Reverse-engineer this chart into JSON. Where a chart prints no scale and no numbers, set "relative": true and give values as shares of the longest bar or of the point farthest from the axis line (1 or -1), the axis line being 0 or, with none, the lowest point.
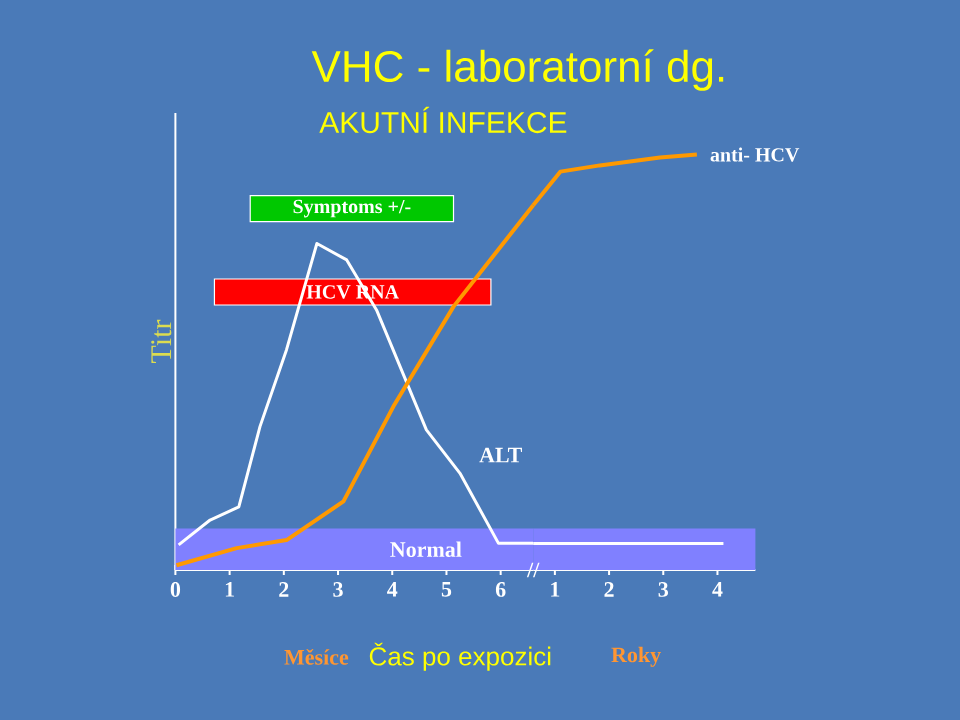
{
  "chart_data": [
    {
      "type": "line",
      "title": "VHC - laboratorní dg.",
      "subtitle": "AKUTNÍ INFEKCE",
      "xlabel": "Čas po expozici",
      "ylabel": "Titr",
      "relative": true,
      "tick_labels": "x",
      "xlim": [
        0,
        6.6
      ],
      "xticks": [
        0,
        1,
        2,
        3,
        4,
        5,
        6
      ],
      "series": [
        {
          "name": "ALT",
          "color": "#ffffff",
          "x": [
            0.06,
            0.64,
            1.17,
            1.56,
            2.05,
            2.61,
            3.16,
            3.71,
            4.63,
            5.25,
            5.96,
            6.6
          ],
          "values": [
            0.069,
            0.137,
            0.173,
            0.393,
            0.604,
            0.895,
            0.85,
            0.713,
            0.384,
            0.265,
            0.073,
            0.073
          ]
        },
        {
          "color": "#ff9900",
          "x": [
            0.02,
            1.13,
            2.05,
            3.1,
            4.02,
            5.13,
            6.6
          ],
          "values": [
            0.013,
            0.06,
            0.082,
            0.188,
            0.448,
            0.722,
            1.0
          ]
        }
      ],
      "bands": [
        {
          "axis": "y",
          "from": 0,
          "to": 0.114,
          "label": "Normal",
          "color": "#8080ff"
        },
        {
          "axis": "x",
          "from": 1.38,
          "to": 5.13,
          "label": "Symptoms +/-",
          "color": "#00c800"
        },
        {
          "axis": "x",
          "from": 0.72,
          "to": 5.82,
          "label": "HCV RNA",
          "color": "#ff0000"
        }
      ],
      "annotations": [
        "Měsíce"
      ]
    },
    {
      "type": "line",
      "relative": true,
      "tick_labels": "x",
      "xlim": [
        0.6,
        4.7
      ],
      "xticks": [
        1,
        2,
        3,
        4
      ],
      "series": [
        {
          "color": "#ffffff",
          "x": [
            0.6,
            4.11
          ],
          "values": [
            0.064,
            0.064
          ]
        },
        {
          "name": "anti- HCV",
          "color": "#ff9900",
          "x": [
            0.6,
            1.1,
            1.83,
            2.94,
            3.62
          ],
          "values": [
            0.878,
            0.959,
            0.974,
            0.993,
            1.0
          ]
        }
      ],
      "bands": [
        {
          "axis": "y",
          "from": 0,
          "to": 0.1,
          "color": "#8080ff"
        }
      ],
      "annotations": [
        "//",
        "Roky"
      ]
    }
  ]
}
